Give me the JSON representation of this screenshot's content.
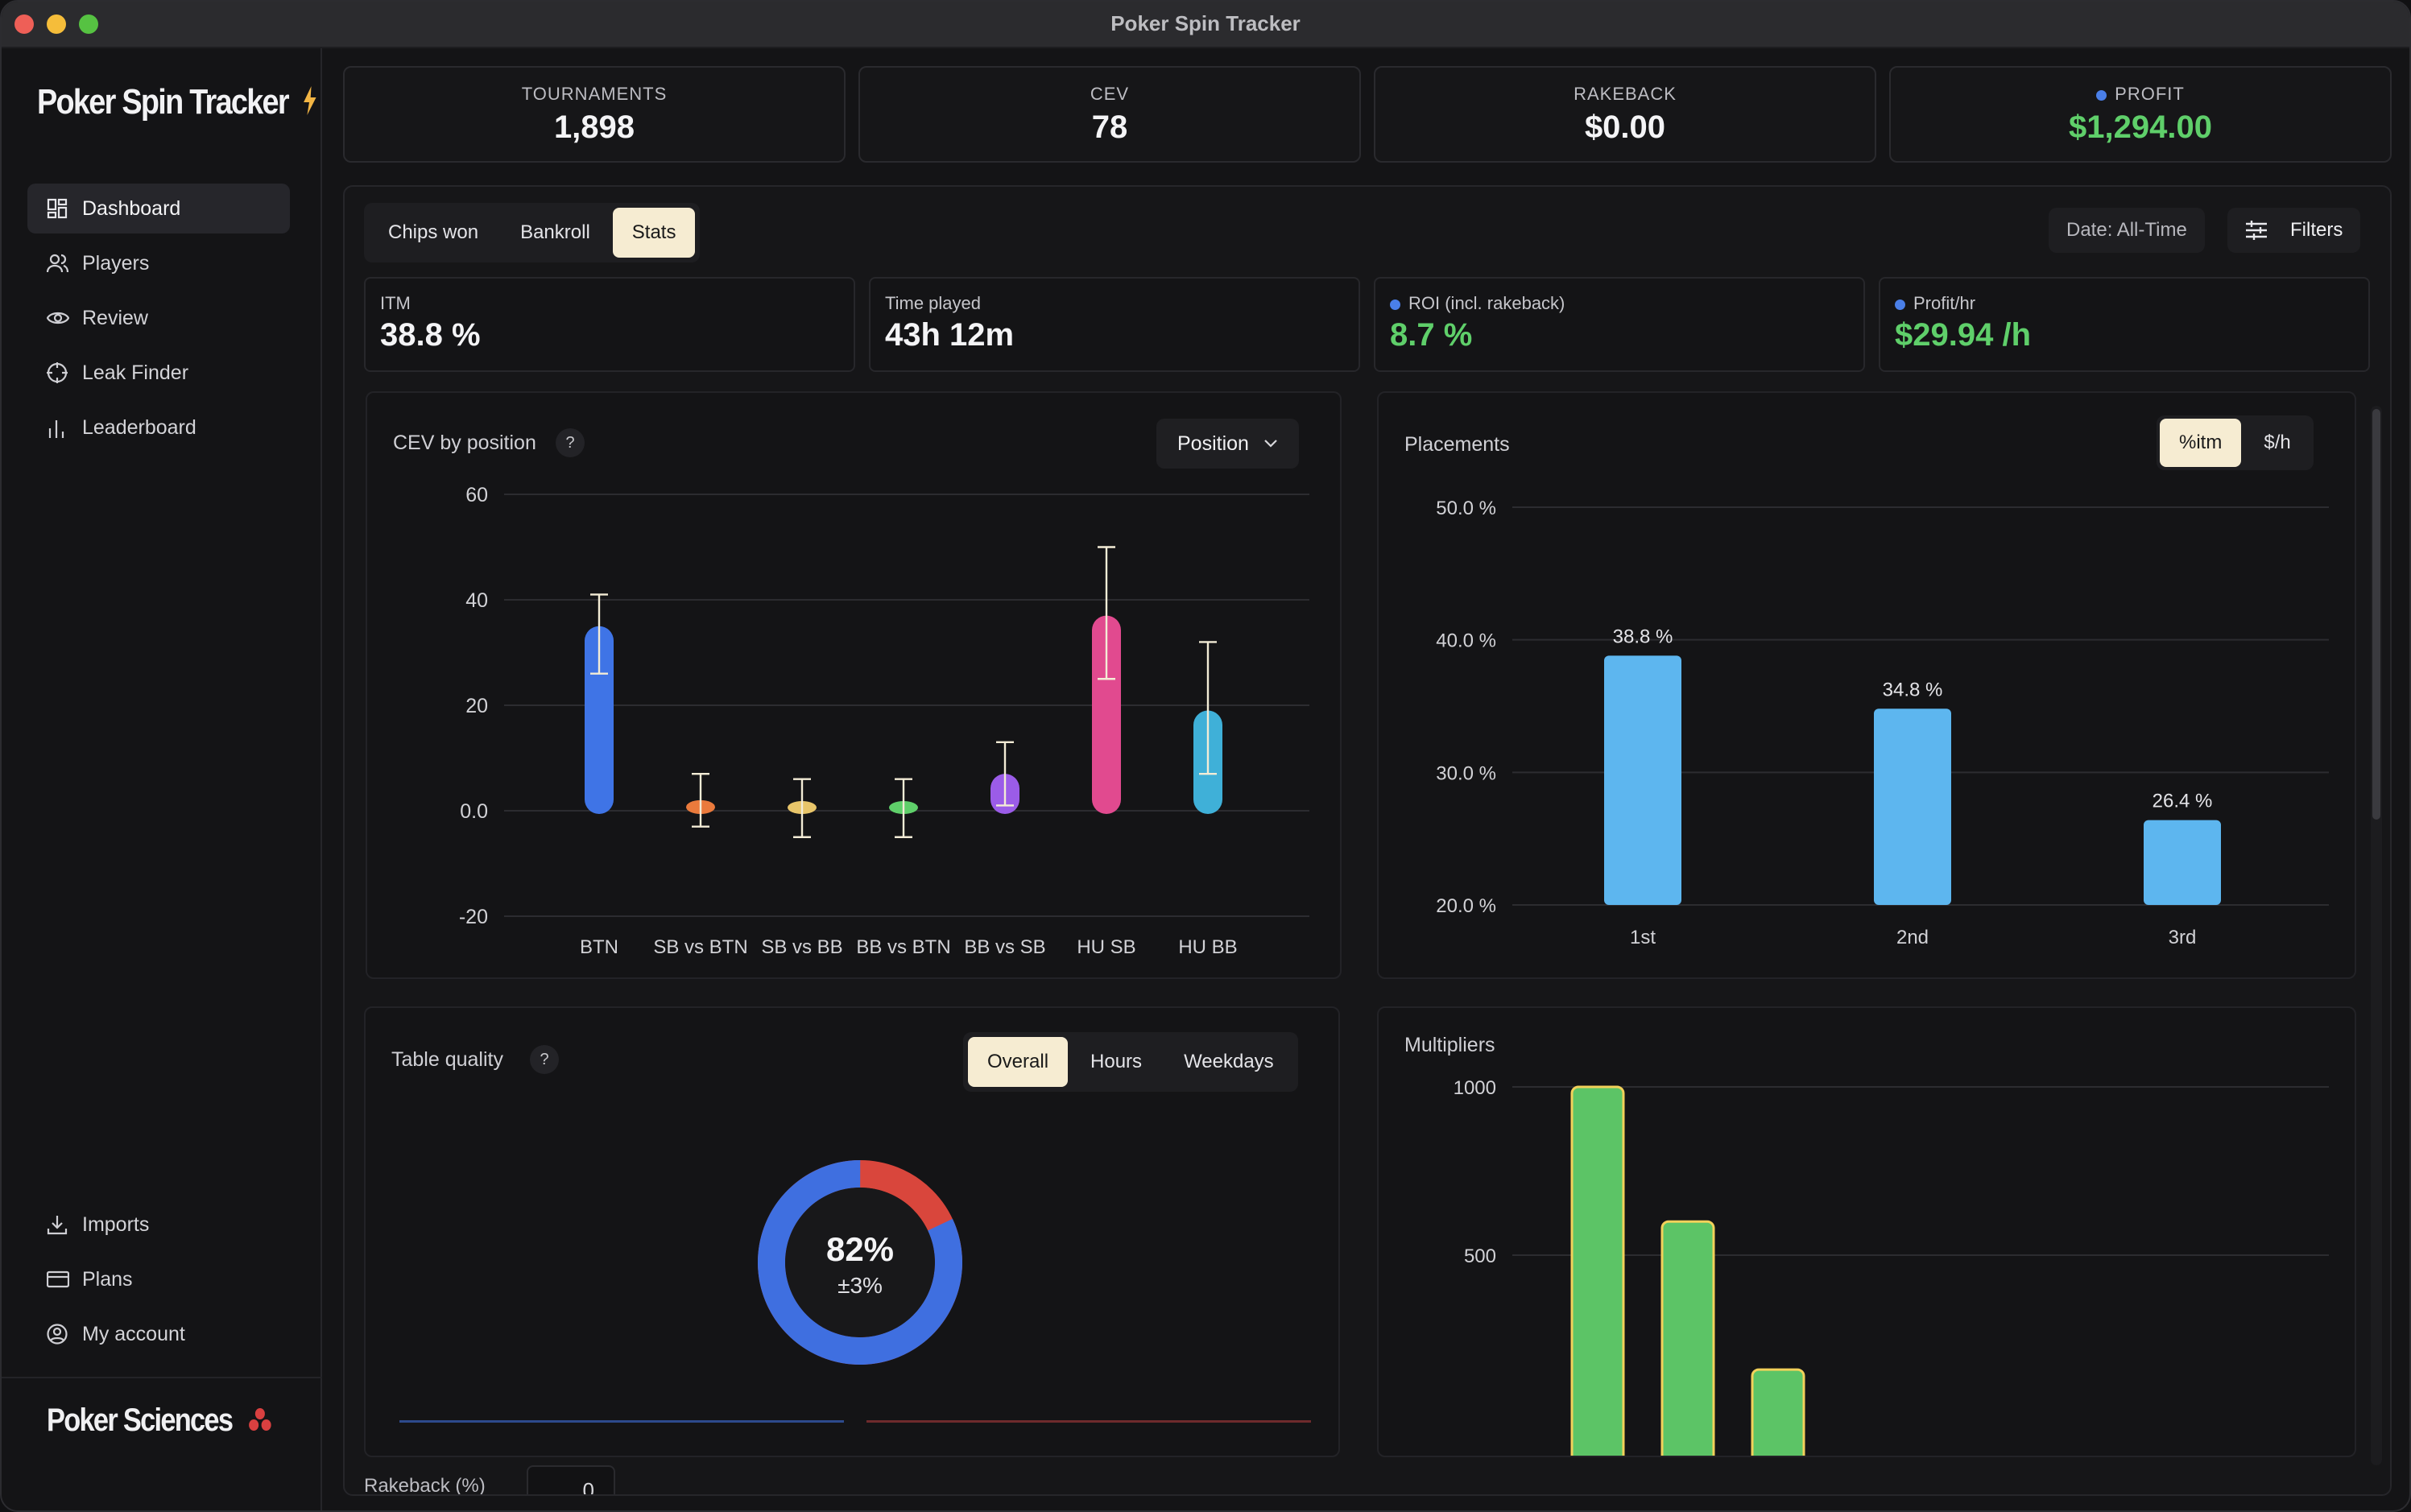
{
  "window": {
    "title": "Poker Spin Tracker",
    "colors": {
      "close": "#ee5f57",
      "minimize": "#f5bd3a",
      "zoom": "#56c242"
    }
  },
  "sidebar": {
    "brand": "Poker Spin Tracker",
    "brand_icon": "lightning-bolt-icon",
    "items": [
      {
        "label": "Dashboard",
        "icon": "dashboard-grid-icon",
        "active": true
      },
      {
        "label": "Players",
        "icon": "users-icon"
      },
      {
        "label": "Review",
        "icon": "eye-icon"
      },
      {
        "label": "Leak Finder",
        "icon": "crosshair-icon"
      },
      {
        "label": "Leaderboard",
        "icon": "bar-chart-icon"
      }
    ],
    "bottom_items": [
      {
        "label": "Imports",
        "icon": "download-icon"
      },
      {
        "label": "Plans",
        "icon": "card-icon"
      },
      {
        "label": "My account",
        "icon": "account-circle-icon"
      }
    ],
    "footer_brand": "Poker Sciences",
    "footer_icon": "clubs-icon"
  },
  "kpis": [
    {
      "label": "TOURNAMENTS",
      "value": "1,898"
    },
    {
      "label": "CEV",
      "value": "78"
    },
    {
      "label": "RAKEBACK",
      "value": "$0.00"
    },
    {
      "label": "PROFIT",
      "value": "$1,294.00",
      "color": "#5fcf6a",
      "dot": true
    }
  ],
  "tabs": {
    "items": [
      "Chips won",
      "Bankroll",
      "Stats"
    ],
    "selected": "Stats"
  },
  "date_filter": "Date: All-Time",
  "filters_label": "Filters",
  "stats": [
    {
      "label": "ITM",
      "value": "38.8 %"
    },
    {
      "label": "Time played",
      "value": "43h 12m"
    },
    {
      "label": "ROI (incl. rakeback)",
      "value": "8.7 %",
      "color": "#5fcf6a",
      "dot": true
    },
    {
      "label": "Profit/hr",
      "value": "$29.94 /h",
      "color": "#5fcf6a",
      "dot": true
    }
  ],
  "cev_card": {
    "title": "CEV by position",
    "help": "?",
    "dropdown": "Position"
  },
  "placements_card": {
    "title": "Placements",
    "toggle": [
      "%itm",
      "$/h"
    ],
    "selected": "%itm"
  },
  "table_quality": {
    "title": "Table quality",
    "help": "?",
    "tabs": [
      "Overall",
      "Hours",
      "Weekdays"
    ],
    "selected": "Overall",
    "percent": "82%",
    "margin": "±3%",
    "value": 0.82
  },
  "multipliers_card": {
    "title": "Multipliers"
  },
  "rakeback": {
    "label": "Rakeback (%)",
    "value": "0"
  },
  "chart_data": [
    {
      "type": "bar",
      "title": "CEV by position",
      "categories": [
        "BTN",
        "SB vs BTN",
        "SB vs BB",
        "BB vs BTN",
        "BB vs SB",
        "HU SB",
        "HU BB"
      ],
      "values": [
        35,
        2,
        0,
        0,
        7,
        37,
        19
      ],
      "error_low": [
        26,
        -3,
        -5,
        -5,
        1,
        25,
        7
      ],
      "error_high": [
        41,
        7,
        6,
        6,
        13,
        50,
        32
      ],
      "colors": [
        "#3f74e6",
        "#ea7a3c",
        "#e8c56a",
        "#5fcf6a",
        "#9b5ce8",
        "#e14a8f",
        "#3fb0d8"
      ],
      "ylim": [
        -20,
        60
      ],
      "yticks": [
        "60",
        "40",
        "20",
        "0.0",
        "-20"
      ],
      "ytick_values": [
        60,
        40,
        20,
        0,
        -20
      ]
    },
    {
      "type": "bar",
      "title": "Placements",
      "categories": [
        "1st",
        "2nd",
        "3rd"
      ],
      "values": [
        38.8,
        34.8,
        26.4
      ],
      "value_labels": [
        "38.8 %",
        "34.8 %",
        "26.4 %"
      ],
      "ylim": [
        20,
        50
      ],
      "yticks": [
        "50.0 %",
        "40.0 %",
        "30.0 %",
        "20.0 %"
      ],
      "ytick_values": [
        50,
        40,
        30,
        20
      ],
      "color": "#5db6ef"
    },
    {
      "type": "bar",
      "title": "Multipliers",
      "values": [
        1000,
        600,
        160
      ],
      "yticks": [
        "1000",
        "500"
      ],
      "ytick_values": [
        1000,
        500
      ],
      "color": "#5cc466"
    }
  ]
}
